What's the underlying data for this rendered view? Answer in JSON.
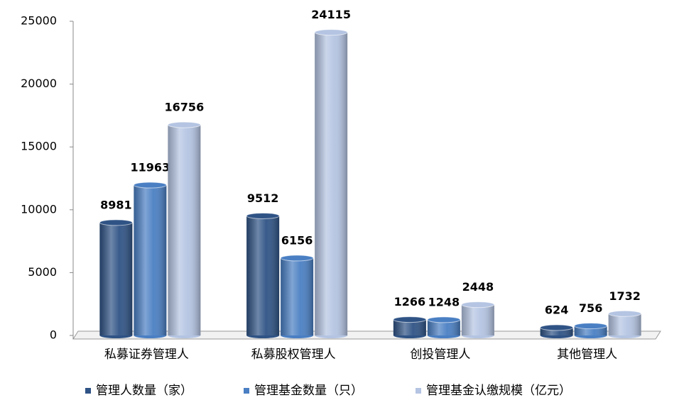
{
  "chart_data": {
    "type": "bar",
    "categories": [
      "私募证券管理人",
      "私募股权管理人",
      "创投管理人",
      "其他管理人"
    ],
    "series": [
      {
        "name": "管理人数量（家）",
        "color": "#2f5385",
        "values": [
          8981,
          9512,
          1266,
          624
        ]
      },
      {
        "name": "管理基金数量（只）",
        "color": "#4a7fc3",
        "values": [
          11963,
          6156,
          1248,
          756
        ]
      },
      {
        "name": "管理基金认缴规模（亿元）",
        "color": "#b4c4e2",
        "values": [
          16756,
          24115,
          2448,
          1732
        ]
      }
    ],
    "ylim": [
      0,
      25000
    ],
    "yticks": [
      0,
      5000,
      10000,
      15000,
      20000,
      25000
    ],
    "grid": false,
    "legend": "bottom"
  }
}
